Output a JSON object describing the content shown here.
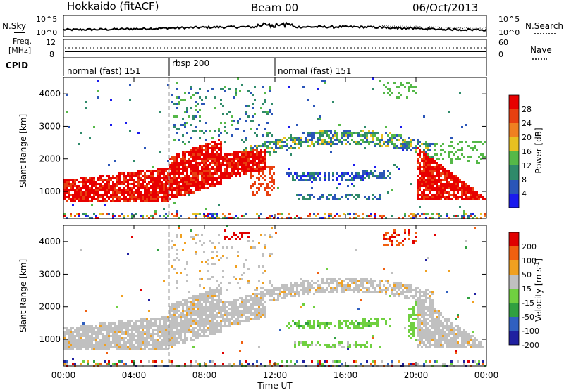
{
  "header": {
    "radar": "Hokkaido (fitACF)",
    "beam": "Beam 00",
    "date": "06/Oct/2013"
  },
  "noise_panel": {
    "left_label": "N.Sky",
    "right_label": "N.Search",
    "left_ticks": [
      "10^5",
      "10^0"
    ],
    "right_ticks": [
      "10^5",
      "10^0"
    ]
  },
  "freq_panel": {
    "left_label_1": "Freq.",
    "left_label_2": "[MHz]",
    "left_ticks": [
      "12",
      "8"
    ],
    "right_label": "Nave",
    "right_ticks": [
      "60",
      "0"
    ]
  },
  "cpid": {
    "label": "CPID",
    "segments": [
      {
        "text": "normal (fast) 151",
        "start_h": 0
      },
      {
        "text": "rbsp 200",
        "start_h": 6
      },
      {
        "text": "normal (fast) 151",
        "start_h": 12
      }
    ]
  },
  "chart_data": [
    {
      "type": "heatmap",
      "title": "",
      "ylabel": "Slant Range [km]",
      "xlim": [
        0,
        24
      ],
      "ylim": [
        180,
        4500
      ],
      "yticks": [
        "1000",
        "2000",
        "3000",
        "4000"
      ],
      "colorbar": {
        "label": "Power [dB]",
        "ticks": [
          "4",
          "8",
          "12",
          "16",
          "20",
          "24",
          "28"
        ],
        "colors": [
          "#1a1aee",
          "#2a55b8",
          "#2f8a6a",
          "#55b848",
          "#e8c020",
          "#f08020",
          "#e84010",
          "#e80000"
        ]
      }
    },
    {
      "type": "heatmap",
      "title": "",
      "ylabel": "Slant Range [km]",
      "xlabel": "Time UT",
      "xlim": [
        0,
        24
      ],
      "ylim": [
        180,
        4500
      ],
      "yticks": [
        "1000",
        "2000",
        "3000",
        "4000"
      ],
      "xticks": [
        "00:00",
        "04:00",
        "08:00",
        "12:00",
        "16:00",
        "20:00",
        "00:00"
      ],
      "colorbar": {
        "label": "Velocity [m s",
        "label_sup": "-1",
        "label_end": "]",
        "ticks": [
          "200",
          "100",
          "50",
          "15",
          "-15",
          "-50",
          "-100",
          "-200"
        ],
        "colors": [
          "#2020a0",
          "#3060c0",
          "#30a040",
          "#70d040",
          "#c0c0c0",
          "#f0a020",
          "#f06010",
          "#e00000"
        ]
      }
    }
  ]
}
